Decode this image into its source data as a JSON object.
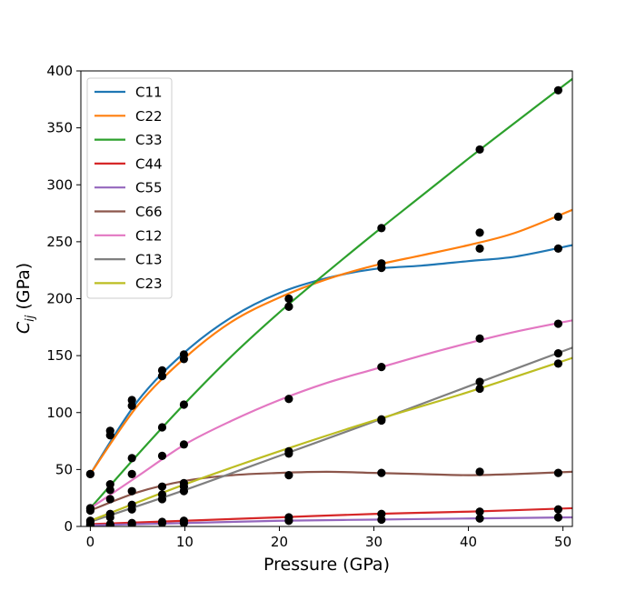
{
  "chart_data": {
    "type": "scatter",
    "title": "",
    "xlabel": "Pressure (GPa)",
    "ylabel": "C_ij (GPa)",
    "ylabel_base": "C",
    "ylabel_sub": "ij",
    "ylabel_unit": " (GPa)",
    "xlim": [
      -1,
      51
    ],
    "ylim": [
      0,
      400
    ],
    "xticks": [
      0,
      10,
      20,
      30,
      40,
      50
    ],
    "yticks": [
      0,
      50,
      100,
      150,
      200,
      250,
      300,
      350,
      400
    ],
    "grid": false,
    "legend_position": "top-left",
    "marker_color": "#000000",
    "x": [
      0,
      2.1,
      4.4,
      7.6,
      9.9,
      21,
      30.8,
      41.2,
      49.5
    ],
    "series": [
      {
        "name": "C11",
        "color": "#1f77b4",
        "points": [
          46,
          84,
          111,
          137,
          151,
          200,
          227,
          244,
          244
        ],
        "curve": [
          [
            0,
            46
          ],
          [
            5,
            110
          ],
          [
            10,
            153
          ],
          [
            15,
            184
          ],
          [
            20,
            205
          ],
          [
            25,
            218
          ],
          [
            30,
            226
          ],
          [
            35,
            229
          ],
          [
            40,
            233
          ],
          [
            45,
            237
          ],
          [
            51,
            247
          ]
        ]
      },
      {
        "name": "C22",
        "color": "#ff7f0e",
        "points": [
          46,
          80,
          106,
          132,
          147,
          193,
          231,
          258,
          272
        ],
        "curve": [
          [
            0,
            46
          ],
          [
            5,
            106
          ],
          [
            10,
            148
          ],
          [
            15,
            180
          ],
          [
            20,
            201
          ],
          [
            25,
            217
          ],
          [
            30,
            229
          ],
          [
            35,
            238
          ],
          [
            40,
            247
          ],
          [
            45,
            258
          ],
          [
            51,
            278
          ]
        ]
      },
      {
        "name": "C33",
        "color": "#2ca02c",
        "points": [
          16,
          37,
          60,
          87,
          107,
          193,
          262,
          331,
          383
        ],
        "curve": [
          [
            0,
            16
          ],
          [
            5,
            63
          ],
          [
            10,
            108
          ],
          [
            15,
            150
          ],
          [
            20,
            188
          ],
          [
            25,
            223
          ],
          [
            30,
            257
          ],
          [
            35,
            290
          ],
          [
            40,
            323
          ],
          [
            45,
            355
          ],
          [
            51,
            393
          ]
        ]
      },
      {
        "name": "C44",
        "color": "#d62728",
        "points": [
          2,
          2,
          3,
          4,
          5,
          8,
          11,
          13,
          15
        ],
        "curve": [
          [
            0,
            2
          ],
          [
            10,
            5
          ],
          [
            20,
            8
          ],
          [
            30,
            11
          ],
          [
            40,
            13
          ],
          [
            51,
            16
          ]
        ]
      },
      {
        "name": "C55",
        "color": "#9467bd",
        "points": [
          1,
          1,
          2,
          3,
          3,
          5,
          6,
          7,
          8
        ],
        "curve": [
          [
            0,
            1
          ],
          [
            10,
            3
          ],
          [
            20,
            5
          ],
          [
            30,
            6
          ],
          [
            40,
            7
          ],
          [
            51,
            8
          ]
        ]
      },
      {
        "name": "C66",
        "color": "#8c564b",
        "points": [
          14,
          24,
          31,
          35,
          38,
          45,
          47,
          48,
          47
        ],
        "curve": [
          [
            0,
            14
          ],
          [
            5,
            30
          ],
          [
            10,
            40
          ],
          [
            15,
            45
          ],
          [
            20,
            47
          ],
          [
            25,
            48
          ],
          [
            30,
            47
          ],
          [
            35,
            46
          ],
          [
            40,
            45
          ],
          [
            45,
            46
          ],
          [
            51,
            48
          ]
        ]
      },
      {
        "name": "C12",
        "color": "#e377c2",
        "points": [
          16,
          32,
          46,
          62,
          72,
          112,
          140,
          165,
          178
        ],
        "curve": [
          [
            0,
            16
          ],
          [
            5,
            44
          ],
          [
            10,
            72
          ],
          [
            15,
            93
          ],
          [
            20,
            111
          ],
          [
            25,
            126
          ],
          [
            30,
            138
          ],
          [
            35,
            150
          ],
          [
            40,
            161
          ],
          [
            45,
            171
          ],
          [
            51,
            181
          ]
        ]
      },
      {
        "name": "C13",
        "color": "#7f7f7f",
        "points": [
          4,
          8,
          15,
          24,
          31,
          64,
          93,
          127,
          152
        ],
        "curve": [
          [
            0,
            4
          ],
          [
            10,
            32
          ],
          [
            20,
            62
          ],
          [
            30,
            92
          ],
          [
            40,
            123
          ],
          [
            51,
            157
          ]
        ]
      },
      {
        "name": "C23",
        "color": "#bcbd22",
        "points": [
          5,
          11,
          19,
          28,
          35,
          66,
          94,
          121,
          143
        ],
        "curve": [
          [
            0,
            5
          ],
          [
            10,
            37
          ],
          [
            20,
            66
          ],
          [
            30,
            93
          ],
          [
            40,
            118
          ],
          [
            51,
            148
          ]
        ]
      }
    ]
  }
}
